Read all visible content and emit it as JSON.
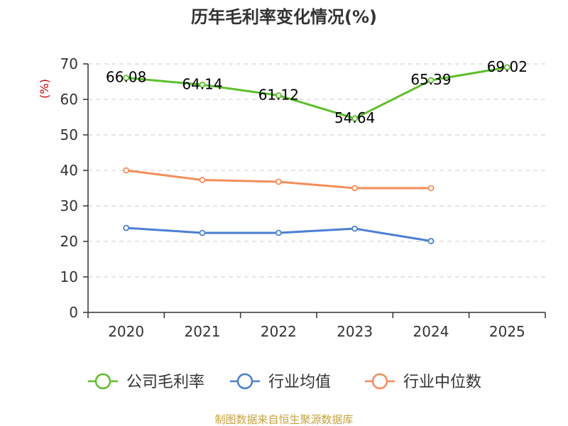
{
  "chart_data": {
    "type": "line",
    "title": "历年毛利率变化情况(%)",
    "ylabel": "(%)",
    "xlabel": "",
    "categories": [
      "2020",
      "2021",
      "2022",
      "2023",
      "2024",
      "2025"
    ],
    "ylim": [
      0,
      70
    ],
    "yticks": [
      0,
      10,
      20,
      30,
      40,
      50,
      60,
      70
    ],
    "grid": true,
    "legend_position": "bottom",
    "series": [
      {
        "name": "公司毛利率",
        "color": "#5cbf2a",
        "values": [
          66.08,
          64.14,
          61.12,
          54.64,
          65.39,
          69.02
        ],
        "labels": true
      },
      {
        "name": "行业均值",
        "color": "#4a7fd6",
        "values": [
          23.8,
          22.4,
          22.4,
          23.6,
          20.1,
          null
        ],
        "labels": false
      },
      {
        "name": "行业中位数",
        "color": "#f58d5a",
        "values": [
          40.0,
          37.3,
          36.8,
          35.0,
          35.0,
          null
        ],
        "labels": false
      }
    ]
  },
  "source": "制图数据来自恒生聚源数据库"
}
